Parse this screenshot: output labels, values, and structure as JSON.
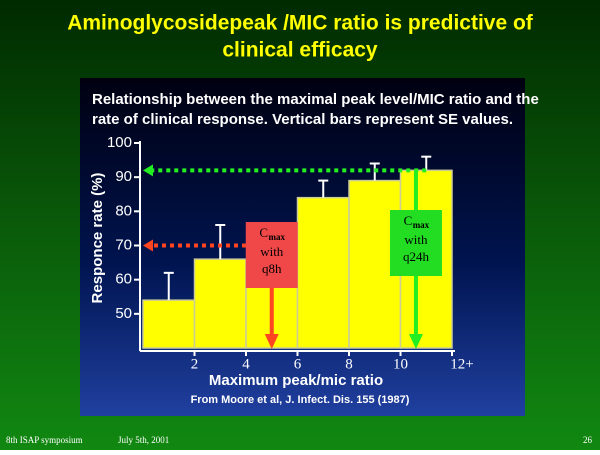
{
  "slide_title": [
    "Aminoglycosidepeak /MIC ratio is predictive of",
    "clinical efficacy"
  ],
  "chart_data": {
    "type": "histogram",
    "subtitle": [
      "Relationship between the maximal peak level/MIC ratio and the",
      "rate of clinical response. Vertical bars represent SE values."
    ],
    "x_label": "Maximum peak/mic ratio",
    "y_label": "Responce rate (%)",
    "source": "From Moore et al, J. Infect. Dis. 155 (1987)",
    "bins": [
      0,
      2,
      4,
      6,
      8,
      10,
      12
    ],
    "values": [
      54,
      66,
      65,
      84,
      89,
      92
    ],
    "errors": [
      8,
      10,
      null,
      5,
      5,
      4
    ],
    "color": "#ffff00",
    "xlim": [
      0,
      12
    ],
    "xticks": [
      2,
      4,
      6,
      8,
      10,
      {
        "value": 12,
        "label": "12+"
      }
    ],
    "ylim": [
      40,
      100
    ],
    "yticks": [
      50,
      60,
      70,
      80,
      90,
      100
    ],
    "reference_lines": [
      {
        "value": 70,
        "color": "#ff4422"
      },
      {
        "value": 92,
        "color": "#22ee22"
      }
    ],
    "annotations": [
      {
        "c": "C",
        "sub": "max",
        "lines": [
          "with",
          "q8h"
        ],
        "x": 5,
        "color": "#f04848",
        "arrow": "#ff4422"
      },
      {
        "c": "C",
        "sub": "max",
        "lines": [
          "with",
          "q24h"
        ],
        "x": 10.6,
        "color": "#22dd22",
        "arrow": "#22ee22"
      }
    ]
  },
  "footer": {
    "left": "8th ISAP symposium",
    "date": "July 5th, 2001",
    "page": "26"
  }
}
